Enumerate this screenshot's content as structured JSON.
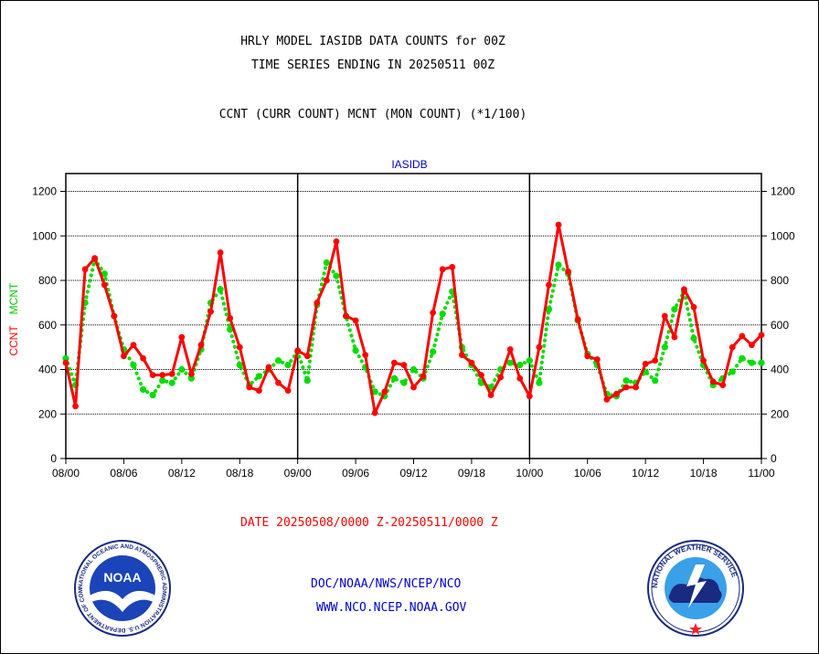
{
  "header": {
    "title_line1": "HRLY MODEL IASIDB DATA COUNTS for 00Z",
    "title_line2": "TIME SERIES ENDING IN 20250511 00Z",
    "title_line3": "CCNT (CURR COUNT) MCNT (MON COUNT) (*1/100)"
  },
  "footer": {
    "date_range": "DATE 20250508/0000 Z-20250511/0000 Z",
    "link1": "DOC/NOAA/NWS/NCEP/NCO",
    "link2": "WWW.NCO.NCEP.NOAA.GOV"
  },
  "logos": {
    "noaa_label": "NOAA",
    "noaa_ring_text": "NATIONAL OCEANIC AND ATMOSPHERIC ADMINISTRATION U.S. DEPARTMENT OF COMMERCE",
    "nws_ring_text": "NATIONAL WEATHER SERVICE"
  },
  "chart_data": {
    "type": "line",
    "title": "IASIDB",
    "ylabel_ccnt": "CCNT",
    "ylabel_mcnt": "MCNT",
    "ylim": [
      0,
      1280
    ],
    "yticks": [
      0,
      200,
      400,
      600,
      800,
      1000,
      1200
    ],
    "x_ticks": [
      "08/00",
      "08/06",
      "08/12",
      "08/18",
      "09/00",
      "09/06",
      "09/12",
      "09/18",
      "10/00",
      "10/06",
      "10/12",
      "10/18",
      "11/00"
    ],
    "x_range_hours": [
      0,
      72
    ],
    "grid": true,
    "day_dividers_at_hours": [
      24,
      48
    ],
    "colors": {
      "ccnt": "#ff0000",
      "mcnt": "#00dd00",
      "title": "#0000cc",
      "axis": "#000000"
    },
    "series": [
      {
        "name": "CCNT",
        "style": "solid",
        "values": [
          430,
          235,
          850,
          900,
          780,
          640,
          460,
          510,
          450,
          375,
          375,
          380,
          545,
          380,
          510,
          660,
          925,
          630,
          500,
          320,
          305,
          410,
          340,
          305,
          485,
          460,
          700,
          800,
          975,
          640,
          620,
          465,
          205,
          300,
          430,
          420,
          320,
          370,
          655,
          850,
          860,
          465,
          430,
          375,
          285,
          365,
          490,
          360,
          280,
          500,
          780,
          1050,
          840,
          625,
          460,
          445,
          265,
          290,
          320,
          320,
          425,
          440,
          640,
          545,
          760,
          680,
          440,
          345,
          330,
          500,
          550,
          510,
          555
        ]
      },
      {
        "name": "MCNT",
        "style": "dotted",
        "values": [
          450,
          330,
          700,
          895,
          830,
          640,
          490,
          420,
          310,
          285,
          350,
          340,
          400,
          360,
          490,
          700,
          760,
          580,
          420,
          330,
          370,
          400,
          440,
          420,
          480,
          350,
          690,
          880,
          820,
          640,
          485,
          410,
          300,
          280,
          360,
          340,
          400,
          360,
          480,
          650,
          750,
          500,
          420,
          340,
          320,
          400,
          430,
          420,
          440,
          340,
          670,
          870,
          830,
          620,
          470,
          420,
          290,
          280,
          350,
          340,
          390,
          350,
          500,
          670,
          750,
          540,
          420,
          330,
          360,
          390,
          450,
          430,
          430
        ]
      }
    ]
  }
}
